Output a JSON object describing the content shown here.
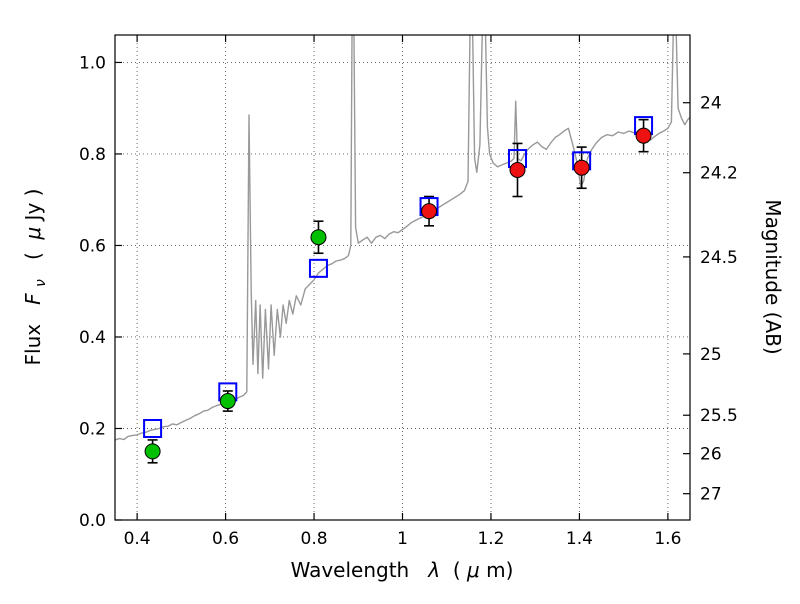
{
  "figure": {
    "background": "#ffffff"
  },
  "chart_data": {
    "type": "line+scatter",
    "title": "",
    "xlabel_parts": [
      "Wavelength  ",
      "λ",
      " (",
      "μ",
      "m)"
    ],
    "ylabel_left_parts": [
      "Flux  ",
      "F",
      "ν",
      "  ( ",
      "μ",
      "Jy )"
    ],
    "ylabel_right": "Magnitude (AB)",
    "xlim": [
      0.35,
      1.65
    ],
    "ylim": [
      0.0,
      1.06
    ],
    "grid": {
      "show": true,
      "style": "dotted",
      "color": "#555555"
    },
    "xticks": [
      {
        "v": 0.4,
        "label": "0.4"
      },
      {
        "v": 0.6,
        "label": "0.6"
      },
      {
        "v": 0.8,
        "label": "0.8"
      },
      {
        "v": 1.0,
        "label": "1"
      },
      {
        "v": 1.2,
        "label": "1.2"
      },
      {
        "v": 1.4,
        "label": "1.4"
      },
      {
        "v": 1.6,
        "label": "1.6"
      }
    ],
    "yticks_left": [
      {
        "v": 0.0,
        "label": "0.0"
      },
      {
        "v": 0.2,
        "label": "0.2"
      },
      {
        "v": 0.4,
        "label": "0.4"
      },
      {
        "v": 0.6,
        "label": "0.6"
      },
      {
        "v": 0.8,
        "label": "0.8"
      },
      {
        "v": 1.0,
        "label": "1.0"
      }
    ],
    "yticks_right": [
      {
        "flux": 0.912,
        "label": "24"
      },
      {
        "flux": 0.759,
        "label": "24.2"
      },
      {
        "flux": 0.575,
        "label": "24.5"
      },
      {
        "flux": 0.363,
        "label": "25"
      },
      {
        "flux": 0.229,
        "label": "25.5"
      },
      {
        "flux": 0.145,
        "label": "26"
      },
      {
        "flux": 0.0575,
        "label": "27"
      }
    ],
    "spectrum": {
      "name": "model spectrum",
      "color": "#999999",
      "width": 1.4,
      "points": [
        [
          0.35,
          0.175
        ],
        [
          0.36,
          0.178
        ],
        [
          0.37,
          0.176
        ],
        [
          0.38,
          0.183
        ],
        [
          0.39,
          0.185
        ],
        [
          0.4,
          0.186
        ],
        [
          0.41,
          0.19
        ],
        [
          0.42,
          0.192
        ],
        [
          0.43,
          0.196
        ],
        [
          0.44,
          0.198
        ],
        [
          0.45,
          0.2
        ],
        [
          0.46,
          0.204
        ],
        [
          0.47,
          0.205
        ],
        [
          0.48,
          0.21
        ],
        [
          0.49,
          0.208
        ],
        [
          0.5,
          0.213
        ],
        [
          0.51,
          0.218
        ],
        [
          0.52,
          0.222
        ],
        [
          0.53,
          0.228
        ],
        [
          0.54,
          0.232
        ],
        [
          0.55,
          0.238
        ],
        [
          0.56,
          0.24
        ],
        [
          0.57,
          0.246
        ],
        [
          0.58,
          0.25
        ],
        [
          0.59,
          0.253
        ],
        [
          0.6,
          0.256
        ],
        [
          0.61,
          0.258
        ],
        [
          0.62,
          0.262
        ],
        [
          0.63,
          0.268
        ],
        [
          0.64,
          0.272
        ],
        [
          0.648,
          0.28
        ],
        [
          0.653,
          0.885
        ],
        [
          0.658,
          0.5
        ],
        [
          0.662,
          0.34
        ],
        [
          0.668,
          0.48
        ],
        [
          0.673,
          0.32
        ],
        [
          0.678,
          0.47
        ],
        [
          0.684,
          0.31
        ],
        [
          0.69,
          0.46
        ],
        [
          0.697,
          0.33
        ],
        [
          0.703,
          0.47
        ],
        [
          0.71,
          0.36
        ],
        [
          0.717,
          0.46
        ],
        [
          0.724,
          0.4
        ],
        [
          0.73,
          0.47
        ],
        [
          0.737,
          0.43
        ],
        [
          0.744,
          0.48
        ],
        [
          0.752,
          0.45
        ],
        [
          0.76,
          0.49
        ],
        [
          0.77,
          0.47
        ],
        [
          0.78,
          0.505
        ],
        [
          0.79,
          0.515
        ],
        [
          0.8,
          0.525
        ],
        [
          0.81,
          0.54
        ],
        [
          0.82,
          0.548
        ],
        [
          0.83,
          0.556
        ],
        [
          0.84,
          0.56
        ],
        [
          0.85,
          0.566
        ],
        [
          0.86,
          0.568
        ],
        [
          0.87,
          0.572
        ],
        [
          0.878,
          0.578
        ],
        [
          0.883,
          0.6
        ],
        [
          0.886,
          1.1
        ],
        [
          0.89,
          1.1
        ],
        [
          0.894,
          0.64
        ],
        [
          0.9,
          0.605
        ],
        [
          0.91,
          0.612
        ],
        [
          0.92,
          0.618
        ],
        [
          0.93,
          0.605
        ],
        [
          0.94,
          0.618
        ],
        [
          0.95,
          0.622
        ],
        [
          0.96,
          0.615
        ],
        [
          0.97,
          0.625
        ],
        [
          0.98,
          0.63
        ],
        [
          0.99,
          0.628
        ],
        [
          1.0,
          0.635
        ],
        [
          1.01,
          0.642
        ],
        [
          1.02,
          0.65
        ],
        [
          1.03,
          0.655
        ],
        [
          1.04,
          0.66
        ],
        [
          1.05,
          0.664
        ],
        [
          1.06,
          0.67
        ],
        [
          1.07,
          0.676
        ],
        [
          1.08,
          0.682
        ],
        [
          1.09,
          0.688
        ],
        [
          1.1,
          0.694
        ],
        [
          1.11,
          0.7
        ],
        [
          1.12,
          0.706
        ],
        [
          1.13,
          0.712
        ],
        [
          1.14,
          0.72
        ],
        [
          1.148,
          0.74
        ],
        [
          1.153,
          1.1
        ],
        [
          1.158,
          1.1
        ],
        [
          1.163,
          0.79
        ],
        [
          1.168,
          0.76
        ],
        [
          1.175,
          0.82
        ],
        [
          1.181,
          1.1
        ],
        [
          1.187,
          1.1
        ],
        [
          1.192,
          0.86
        ],
        [
          1.197,
          0.8
        ],
        [
          1.205,
          0.78
        ],
        [
          1.215,
          0.772
        ],
        [
          1.225,
          0.776
        ],
        [
          1.235,
          0.78
        ],
        [
          1.245,
          0.784
        ],
        [
          1.252,
          0.79
        ],
        [
          1.256,
          0.915
        ],
        [
          1.26,
          0.79
        ],
        [
          1.268,
          0.785
        ],
        [
          1.276,
          0.8
        ],
        [
          1.285,
          0.812
        ],
        [
          1.295,
          0.82
        ],
        [
          1.305,
          0.826
        ],
        [
          1.315,
          0.816
        ],
        [
          1.325,
          0.81
        ],
        [
          1.335,
          0.824
        ],
        [
          1.345,
          0.836
        ],
        [
          1.355,
          0.842
        ],
        [
          1.365,
          0.85
        ],
        [
          1.375,
          0.856
        ],
        [
          1.385,
          0.82
        ],
        [
          1.395,
          0.78
        ],
        [
          1.403,
          0.728
        ],
        [
          1.41,
          0.742
        ],
        [
          1.418,
          0.79
        ],
        [
          1.428,
          0.81
        ],
        [
          1.438,
          0.824
        ],
        [
          1.45,
          0.836
        ],
        [
          1.462,
          0.842
        ],
        [
          1.475,
          0.84
        ],
        [
          1.488,
          0.848
        ],
        [
          1.5,
          0.845
        ],
        [
          1.512,
          0.85
        ],
        [
          1.525,
          0.846
        ],
        [
          1.538,
          0.852
        ],
        [
          1.55,
          0.848
        ],
        [
          1.56,
          0.83
        ],
        [
          1.57,
          0.838
        ],
        [
          1.58,
          0.845
        ],
        [
          1.59,
          0.85
        ],
        [
          1.6,
          0.856
        ],
        [
          1.608,
          0.87
        ],
        [
          1.613,
          1.1
        ],
        [
          1.618,
          1.1
        ],
        [
          1.623,
          0.9
        ],
        [
          1.63,
          0.88
        ],
        [
          1.638,
          0.864
        ],
        [
          1.645,
          0.875
        ],
        [
          1.65,
          0.88
        ]
      ]
    },
    "series": [
      {
        "name": "blue open squares",
        "marker": "open-square",
        "color": "#0000ff",
        "size": 17,
        "points": [
          [
            0.435,
            0.2
          ],
          [
            0.605,
            0.28
          ],
          [
            0.81,
            0.55
          ],
          [
            1.06,
            0.685
          ],
          [
            1.26,
            0.79
          ],
          [
            1.405,
            0.785
          ],
          [
            1.545,
            0.862
          ]
        ]
      },
      {
        "name": "green filled circles",
        "marker": "circle",
        "color": "#00c000",
        "edge": "#000000",
        "size": 15,
        "error_color": "#000000",
        "points": [
          [
            0.435,
            0.15,
            0.025
          ],
          [
            0.605,
            0.26,
            0.022
          ],
          [
            0.81,
            0.618,
            0.035
          ]
        ]
      },
      {
        "name": "red filled circles",
        "marker": "circle",
        "color": "#ee1111",
        "edge": "#000000",
        "size": 15,
        "error_color": "#000000",
        "points": [
          [
            1.06,
            0.675,
            0.032
          ],
          [
            1.26,
            0.765,
            0.058
          ],
          [
            1.405,
            0.77,
            0.045
          ],
          [
            1.545,
            0.84,
            0.035
          ]
        ]
      }
    ]
  }
}
